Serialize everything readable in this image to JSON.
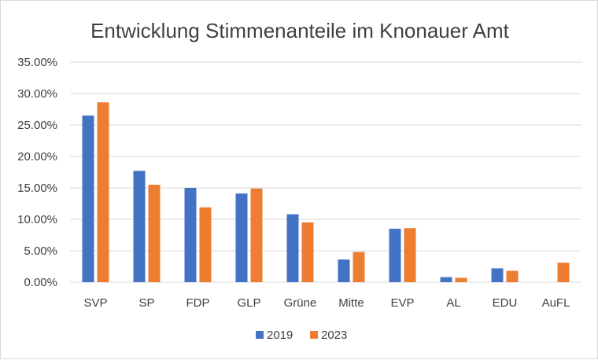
{
  "chart_data": {
    "type": "bar",
    "title": "Entwicklung Stimmenanteile im Knonauer Amt",
    "categories": [
      "SVP",
      "SP",
      "FDP",
      "GLP",
      "Grüne",
      "Mitte",
      "EVP",
      "AL",
      "EDU",
      "AuFL"
    ],
    "series": [
      {
        "name": "2019",
        "color": "#4472c4",
        "values": [
          26.5,
          17.7,
          15.0,
          14.1,
          10.8,
          3.6,
          8.5,
          0.8,
          2.2,
          null
        ]
      },
      {
        "name": "2023",
        "color": "#ed7d31",
        "values": [
          28.6,
          15.5,
          11.9,
          14.9,
          9.5,
          4.8,
          8.6,
          0.7,
          1.8,
          3.1
        ]
      }
    ],
    "yticks": [
      "0.00%",
      "5.00%",
      "10.00%",
      "15.00%",
      "20.00%",
      "25.00%",
      "30.00%",
      "35.00%"
    ],
    "ylim": [
      0,
      35
    ],
    "grid": true,
    "legend": "bottom-center"
  }
}
